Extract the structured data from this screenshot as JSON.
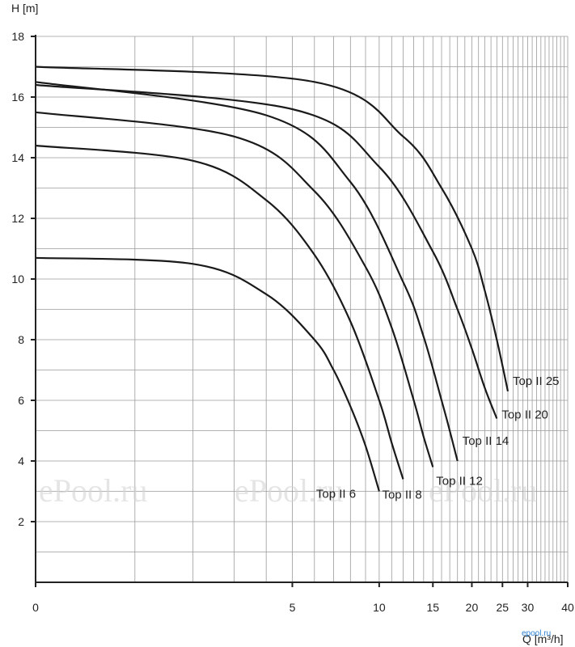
{
  "chart_data": {
    "type": "line",
    "title": "",
    "xlabel": "Q [m³/h]",
    "ylabel": "H [m]",
    "xlim": [
      0,
      40
    ],
    "ylim": [
      0,
      18
    ],
    "x_scale": "log(1+Q)",
    "grid": true,
    "x_tick_labels": [
      "0",
      "5",
      "10",
      "15",
      "20",
      "25",
      "30",
      "40"
    ],
    "x_ticks": [
      0,
      5,
      10,
      15,
      20,
      25,
      30,
      40
    ],
    "y_tick_labels": [
      "2",
      "4",
      "6",
      "8",
      "10",
      "12",
      "14",
      "16",
      "18"
    ],
    "y_ticks": [
      2,
      4,
      6,
      8,
      10,
      12,
      14,
      16,
      18
    ],
    "x_grid": [
      0,
      1,
      2,
      3,
      4,
      5,
      6,
      7,
      8,
      9,
      10,
      11,
      12,
      13,
      14,
      15,
      16,
      17,
      18,
      19,
      20,
      21,
      22,
      23,
      24,
      25,
      26,
      27,
      28,
      29,
      30,
      31,
      32,
      33,
      34,
      35,
      36,
      37,
      38,
      39,
      40
    ],
    "y_grid": [
      0,
      1,
      2,
      3,
      4,
      5,
      6,
      7,
      8,
      9,
      10,
      11,
      12,
      13,
      14,
      15,
      16,
      17,
      18
    ],
    "series": [
      {
        "name": "Top II 6",
        "points": [
          [
            0,
            10.7
          ],
          [
            2,
            10.5
          ],
          [
            4,
            9.5
          ],
          [
            6,
            8.0
          ],
          [
            7,
            7.0
          ],
          [
            8,
            5.8
          ],
          [
            9,
            4.5
          ],
          [
            10,
            3.0
          ]
        ]
      },
      {
        "name": "Top II 8",
        "points": [
          [
            0,
            14.4
          ],
          [
            2,
            13.9
          ],
          [
            4,
            12.6
          ],
          [
            6,
            10.8
          ],
          [
            8,
            8.6
          ],
          [
            10,
            6.0
          ],
          [
            11,
            4.6
          ],
          [
            12,
            3.4
          ]
        ]
      },
      {
        "name": "Top II 12",
        "points": [
          [
            0,
            15.5
          ],
          [
            3,
            14.7
          ],
          [
            6,
            12.9
          ],
          [
            9,
            10.4
          ],
          [
            11,
            8.4
          ],
          [
            13,
            6.0
          ],
          [
            14,
            4.8
          ],
          [
            15,
            3.8
          ]
        ]
      },
      {
        "name": "Top II 14",
        "points": [
          [
            0,
            16.5
          ],
          [
            4,
            15.4
          ],
          [
            8,
            13.2
          ],
          [
            12,
            9.9
          ],
          [
            14,
            8.1
          ],
          [
            16,
            6.0
          ],
          [
            17,
            5.0
          ],
          [
            18,
            4.0
          ]
        ]
      },
      {
        "name": "Top II 20",
        "points": [
          [
            0,
            16.4
          ],
          [
            5,
            15.6
          ],
          [
            10,
            13.7
          ],
          [
            15,
            10.9
          ],
          [
            18,
            9.0
          ],
          [
            20,
            7.7
          ],
          [
            22,
            6.4
          ],
          [
            24,
            5.4
          ]
        ]
      },
      {
        "name": "Top II 25",
        "points": [
          [
            0,
            17.0
          ],
          [
            6,
            16.5
          ],
          [
            12,
            14.7
          ],
          [
            16,
            13.0
          ],
          [
            20,
            11.0
          ],
          [
            22,
            9.6
          ],
          [
            24,
            8.0
          ],
          [
            26,
            6.3
          ]
        ]
      }
    ],
    "labels": [
      "Top II 25",
      "Top II 20",
      "Top II 14",
      "Top II 12",
      "Top II 8",
      "Top II 6"
    ]
  },
  "watermark": "ePool.ru",
  "logo": "epool.ru"
}
